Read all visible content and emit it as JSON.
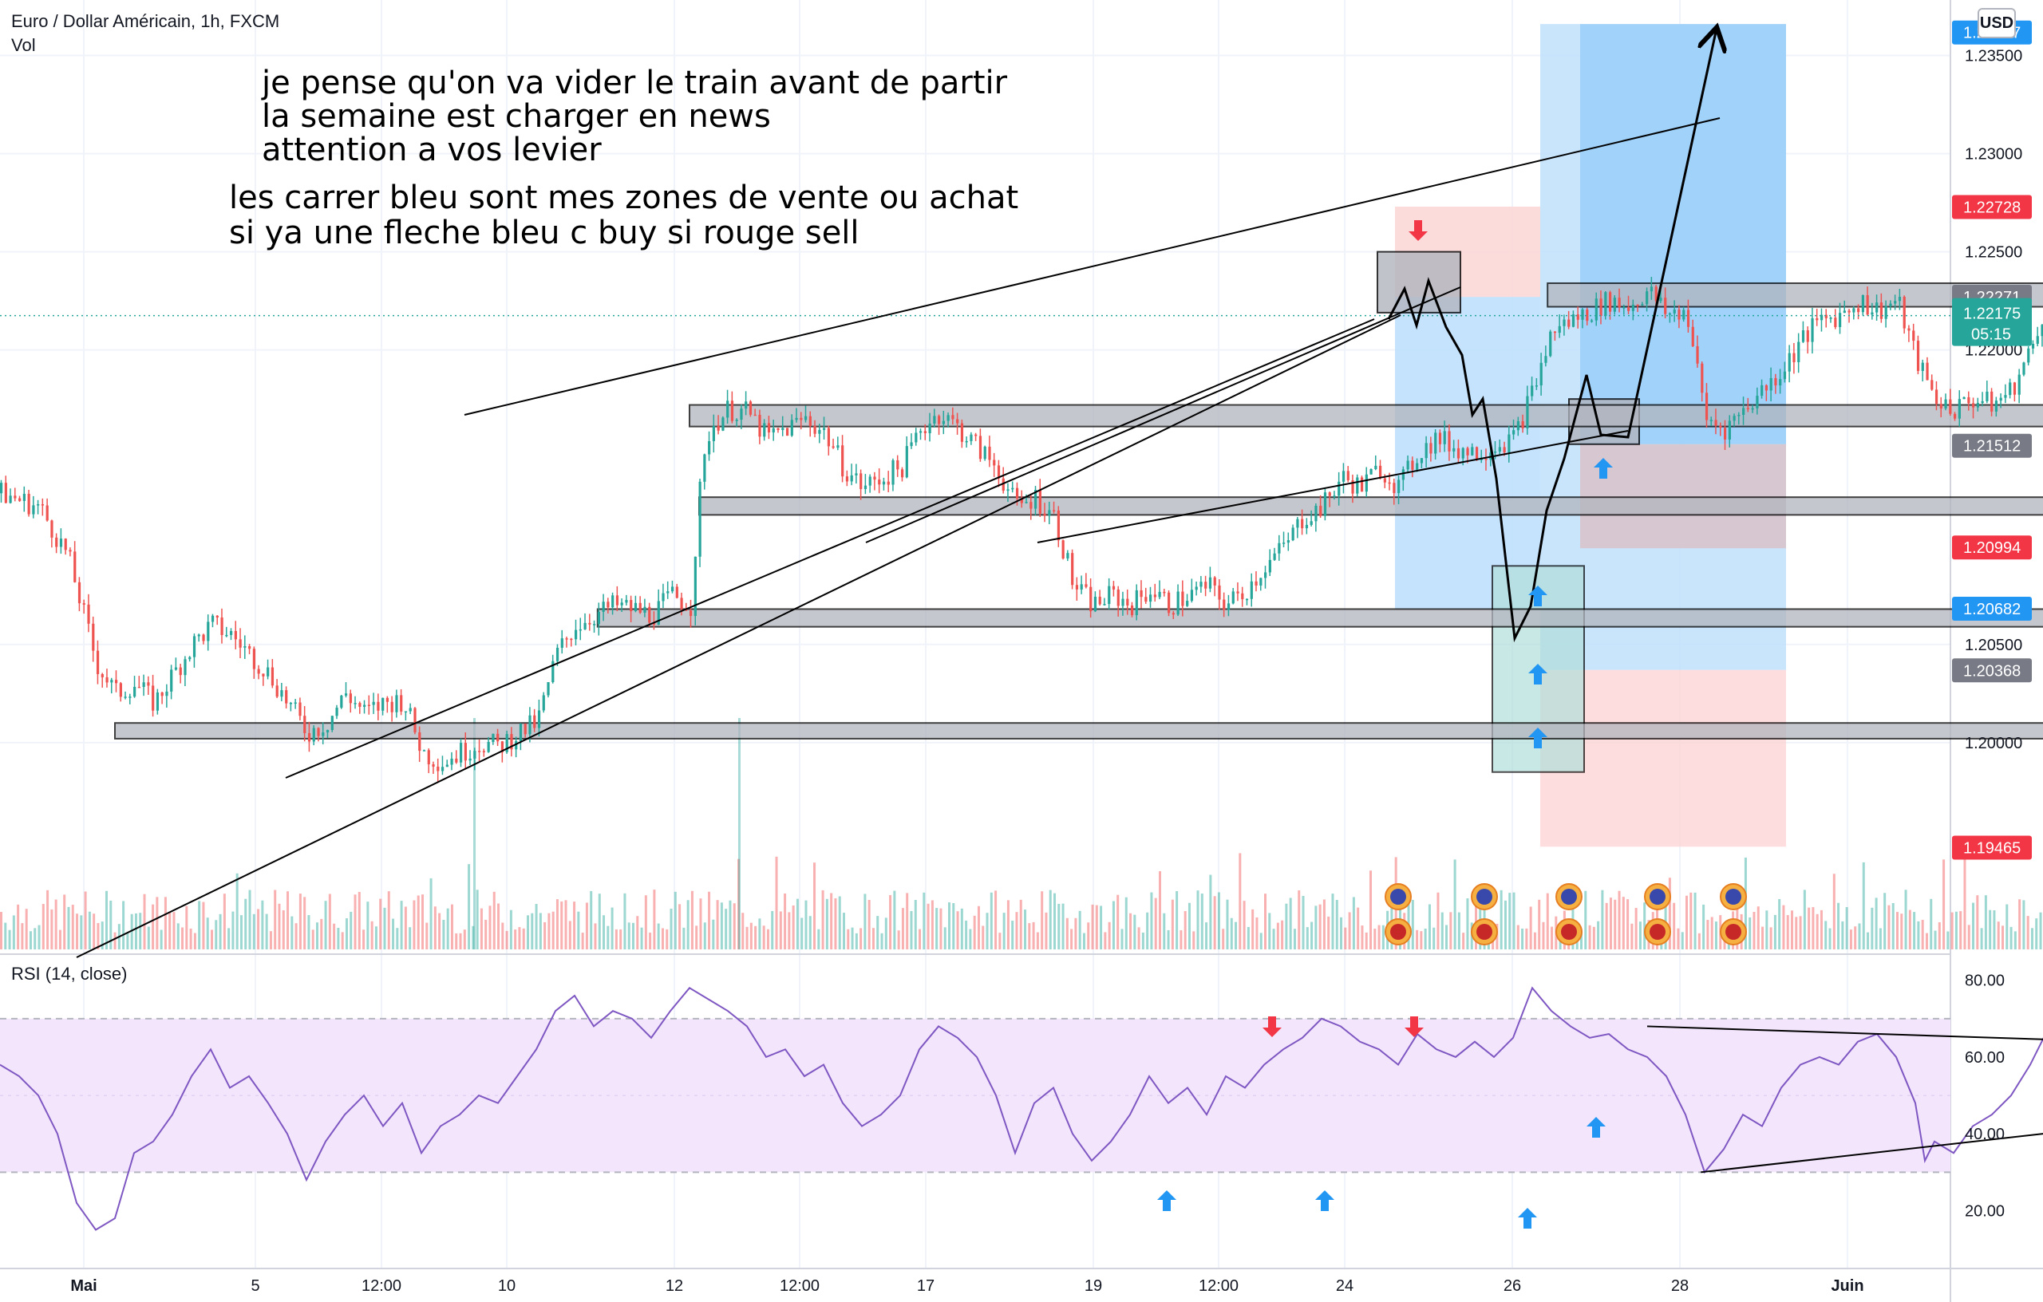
{
  "header": {
    "symbol_title": "Euro / Dollar Américain, 1h, FXCM",
    "volume_label": "Vol",
    "currency_badge": "USD"
  },
  "annotations": {
    "note_line_1": "je pense qu'on va vider le train avant de partir",
    "note_line_2": "la semaine est charger en news",
    "note_line_3": "attention a vos levier",
    "note_line_4": "les carrer bleu sont mes zones de vente ou achat",
    "note_line_5": "si ya une fleche bleu c buy si rouge sell"
  },
  "rsi_label": "RSI (14, close)",
  "colors": {
    "up": "#26a69a",
    "down": "#ef5350",
    "rsi": "#7e57c2",
    "rsi_band": "#f3e5fc",
    "long_zone": "#bbdefb",
    "stop_zone": "#fcd5d5",
    "buy_arrow": "#2196f3",
    "sell_arrow": "#f23645"
  },
  "chart_data": [
    {
      "type": "candlestick",
      "title": "Euro / Dollar Américain, 1h, FXCM",
      "x_ticks": [
        "Mai",
        "5",
        "12:00",
        "10",
        "12",
        "12:00",
        "17",
        "19",
        "12:00",
        "24",
        "26",
        "28",
        "Juin"
      ],
      "y_ticks": [
        "1.23500",
        "1.23000",
        "1.22500",
        "1.22000",
        "1.20500",
        "1.20000"
      ],
      "ylim": [
        1.1915,
        1.2375
      ],
      "current_price": "1.22175",
      "countdown": "05:15",
      "price_labels": [
        {
          "text": "1.23617",
          "value": 1.23617,
          "color": "#2196f3"
        },
        {
          "text": "1.22728",
          "value": 1.22728,
          "color": "#f23645"
        },
        {
          "text": "1.22271",
          "value": 1.22271,
          "color": "#787b86"
        },
        {
          "text": "1.21512",
          "value": 1.21512,
          "color": "#787b86"
        },
        {
          "text": "1.20994",
          "value": 1.20994,
          "color": "#f23645"
        },
        {
          "text": "1.20682",
          "value": 1.20682,
          "color": "#2196f3"
        },
        {
          "text": "1.20368",
          "value": 1.20368,
          "color": "#787b86"
        },
        {
          "text": "1.19465",
          "value": 1.19465,
          "color": "#f23645"
        }
      ],
      "price_path": [
        [
          0,
          1.2127
        ],
        [
          20,
          1.212
        ],
        [
          35,
          1.2095
        ],
        [
          50,
          1.204
        ],
        [
          60,
          1.2025
        ],
        [
          70,
          1.203
        ],
        [
          80,
          1.202
        ],
        [
          90,
          1.2035
        ],
        [
          100,
          1.205
        ],
        [
          110,
          1.206
        ],
        [
          120,
          1.2055
        ],
        [
          130,
          1.2045
        ],
        [
          140,
          1.2035
        ],
        [
          150,
          1.202
        ],
        [
          160,
          1.2005
        ],
        [
          170,
          1.201
        ],
        [
          180,
          1.2025
        ],
        [
          190,
          1.2015
        ],
        [
          200,
          1.202
        ],
        [
          210,
          1.2022
        ],
        [
          220,
          1.1995
        ],
        [
          230,
          1.199
        ],
        [
          240,
          1.1995
        ],
        [
          250,
          1.2
        ],
        [
          260,
          1.1998
        ],
        [
          270,
          1.2005
        ],
        [
          280,
          1.201
        ],
        [
          290,
          1.2045
        ],
        [
          300,
          1.206
        ],
        [
          310,
          1.2065
        ],
        [
          320,
          1.207
        ],
        [
          330,
          1.2068
        ],
        [
          340,
          1.2065
        ],
        [
          350,
          1.2075
        ],
        [
          360,
          1.207
        ],
        [
          365,
          1.213
        ],
        [
          370,
          1.216
        ],
        [
          380,
          1.217
        ],
        [
          390,
          1.2168
        ],
        [
          400,
          1.2155
        ],
        [
          410,
          1.216
        ],
        [
          420,
          1.2165
        ],
        [
          430,
          1.2158
        ],
        [
          440,
          1.214
        ],
        [
          450,
          1.213
        ],
        [
          460,
          1.2135
        ],
        [
          470,
          1.214
        ],
        [
          480,
          1.216
        ],
        [
          490,
          1.2168
        ],
        [
          500,
          1.216
        ],
        [
          510,
          1.215
        ],
        [
          520,
          1.214
        ],
        [
          530,
          1.212
        ],
        [
          540,
          1.2125
        ],
        [
          550,
          1.2115
        ],
        [
          560,
          1.208
        ],
        [
          570,
          1.207
        ],
        [
          580,
          1.2075
        ],
        [
          590,
          1.207
        ],
        [
          600,
          1.2078
        ],
        [
          610,
          1.207
        ],
        [
          620,
          1.2075
        ],
        [
          630,
          1.208
        ],
        [
          640,
          1.207
        ],
        [
          650,
          1.2078
        ],
        [
          660,
          1.209
        ],
        [
          670,
          1.21
        ],
        [
          680,
          1.2115
        ],
        [
          690,
          1.212
        ],
        [
          700,
          1.2135
        ],
        [
          710,
          1.213
        ],
        [
          720,
          1.214
        ],
        [
          730,
          1.213
        ],
        [
          740,
          1.2148
        ],
        [
          750,
          1.2155
        ],
        [
          760,
          1.215
        ],
        [
          770,
          1.2148
        ],
        [
          780,
          1.2152
        ],
        [
          790,
          1.2155
        ],
        [
          800,
          1.218
        ],
        [
          810,
          1.221
        ],
        [
          820,
          1.2215
        ],
        [
          830,
          1.222
        ],
        [
          840,
          1.2225
        ],
        [
          850,
          1.2222
        ],
        [
          860,
          1.223
        ],
        [
          870,
          1.2218
        ],
        [
          880,
          1.222
        ],
        [
          890,
          1.2165
        ],
        [
          900,
          1.216
        ],
        [
          910,
          1.217
        ],
        [
          920,
          1.218
        ],
        [
          930,
          1.219
        ],
        [
          940,
          1.2205
        ],
        [
          950,
          1.2215
        ],
        [
          960,
          1.2218
        ],
        [
          970,
          1.2225
        ],
        [
          980,
          1.222
        ],
        [
          990,
          1.2225
        ],
        [
          1000,
          1.2195
        ],
        [
          1010,
          1.2175
        ],
        [
          1020,
          1.217
        ],
        [
          1030,
          1.2175
        ],
        [
          1040,
          1.2172
        ],
        [
          1050,
          1.218
        ],
        [
          1060,
          1.22
        ],
        [
          1065,
          1.2218
        ]
      ],
      "zones": [
        {
          "y1": 1.2234,
          "y2": 1.2222,
          "x1": 808,
          "x2": 1120
        },
        {
          "y1": 1.2172,
          "y2": 1.2161,
          "x1": 360,
          "x2": 1258
        },
        {
          "y1": 1.2125,
          "y2": 1.2116,
          "x1": 365,
          "x2": 1258
        },
        {
          "y1": 1.2068,
          "y2": 1.2059,
          "x1": 312,
          "x2": 1258
        },
        {
          "y1": 1.201,
          "y2": 1.2002,
          "x1": 60,
          "x2": 1266
        }
      ]
    },
    {
      "type": "line",
      "title": "RSI (14, close)",
      "y_ticks": [
        "80.00",
        "60.00",
        "40.00",
        "20.00"
      ],
      "ylim": [
        7,
        87
      ],
      "band": [
        30,
        70
      ],
      "rsi_path": [
        [
          0,
          58
        ],
        [
          10,
          55
        ],
        [
          20,
          50
        ],
        [
          30,
          40
        ],
        [
          40,
          22
        ],
        [
          50,
          15
        ],
        [
          60,
          18
        ],
        [
          70,
          35
        ],
        [
          80,
          38
        ],
        [
          90,
          45
        ],
        [
          100,
          55
        ],
        [
          110,
          62
        ],
        [
          120,
          52
        ],
        [
          130,
          55
        ],
        [
          140,
          48
        ],
        [
          150,
          40
        ],
        [
          160,
          28
        ],
        [
          170,
          38
        ],
        [
          180,
          45
        ],
        [
          190,
          50
        ],
        [
          200,
          42
        ],
        [
          210,
          48
        ],
        [
          220,
          35
        ],
        [
          230,
          42
        ],
        [
          240,
          45
        ],
        [
          250,
          50
        ],
        [
          260,
          48
        ],
        [
          270,
          55
        ],
        [
          280,
          62
        ],
        [
          290,
          72
        ],
        [
          300,
          76
        ],
        [
          310,
          68
        ],
        [
          320,
          72
        ],
        [
          330,
          70
        ],
        [
          340,
          65
        ],
        [
          350,
          72
        ],
        [
          360,
          78
        ],
        [
          370,
          75
        ],
        [
          380,
          72
        ],
        [
          390,
          68
        ],
        [
          400,
          60
        ],
        [
          410,
          62
        ],
        [
          420,
          55
        ],
        [
          430,
          58
        ],
        [
          440,
          48
        ],
        [
          450,
          42
        ],
        [
          460,
          45
        ],
        [
          470,
          50
        ],
        [
          480,
          62
        ],
        [
          490,
          68
        ],
        [
          500,
          65
        ],
        [
          510,
          60
        ],
        [
          520,
          50
        ],
        [
          530,
          35
        ],
        [
          540,
          48
        ],
        [
          550,
          52
        ],
        [
          560,
          40
        ],
        [
          570,
          33
        ],
        [
          580,
          38
        ],
        [
          590,
          45
        ],
        [
          600,
          55
        ],
        [
          610,
          48
        ],
        [
          620,
          52
        ],
        [
          630,
          45
        ],
        [
          640,
          55
        ],
        [
          650,
          52
        ],
        [
          660,
          58
        ],
        [
          670,
          62
        ],
        [
          680,
          65
        ],
        [
          690,
          70
        ],
        [
          700,
          68
        ],
        [
          710,
          64
        ],
        [
          720,
          62
        ],
        [
          730,
          58
        ],
        [
          740,
          66
        ],
        [
          750,
          62
        ],
        [
          760,
          60
        ],
        [
          770,
          64
        ],
        [
          780,
          60
        ],
        [
          790,
          65
        ],
        [
          800,
          78
        ],
        [
          810,
          72
        ],
        [
          820,
          68
        ],
        [
          830,
          65
        ],
        [
          840,
          66
        ],
        [
          850,
          62
        ],
        [
          860,
          60
        ],
        [
          870,
          55
        ],
        [
          880,
          45
        ],
        [
          890,
          30
        ],
        [
          900,
          36
        ],
        [
          910,
          45
        ],
        [
          920,
          42
        ],
        [
          930,
          52
        ],
        [
          940,
          58
        ],
        [
          950,
          60
        ],
        [
          960,
          58
        ],
        [
          970,
          64
        ],
        [
          980,
          66
        ],
        [
          990,
          60
        ],
        [
          1000,
          48
        ],
        [
          1005,
          33
        ],
        [
          1010,
          38
        ],
        [
          1020,
          35
        ],
        [
          1030,
          42
        ],
        [
          1040,
          45
        ],
        [
          1050,
          50
        ],
        [
          1060,
          58
        ],
        [
          1068,
          66
        ]
      ],
      "projected_path": [
        [
          1068,
          66
        ],
        [
          1080,
          60
        ],
        [
          1090,
          66
        ],
        [
          1100,
          58
        ],
        [
          1115,
          52
        ],
        [
          1125,
          58
        ],
        [
          1140,
          42
        ],
        [
          1160,
          32
        ],
        [
          1170,
          26
        ],
        [
          1180,
          32
        ],
        [
          1190,
          62
        ],
        [
          1200,
          55
        ],
        [
          1215,
          60
        ],
        [
          1230,
          56
        ],
        [
          1250,
          68
        ],
        [
          1275,
          82
        ]
      ]
    }
  ]
}
